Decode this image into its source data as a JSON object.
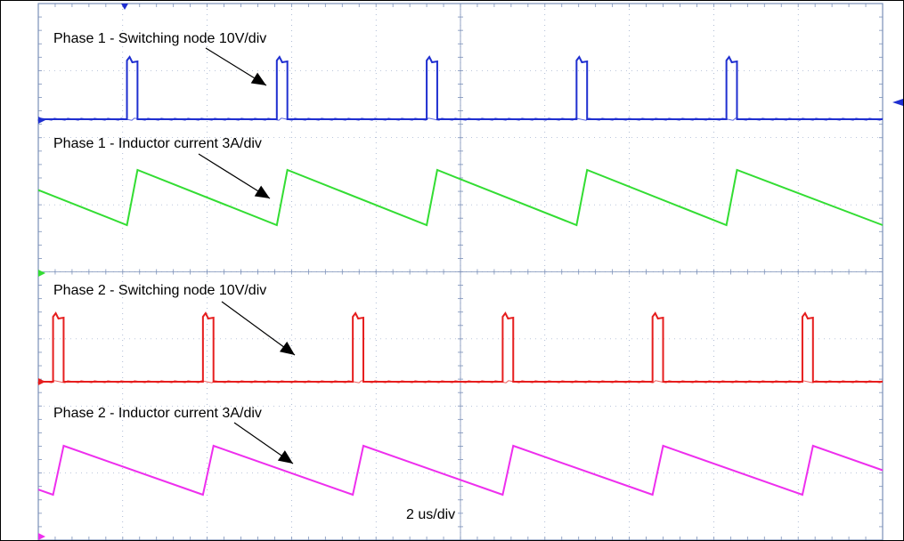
{
  "chart_data": {
    "type": "line",
    "title": "",
    "timebase_label": "2 us/div",
    "x_unit": "us",
    "x_range": [
      0,
      20
    ],
    "grid": true,
    "period_us": 3.55,
    "colors": {
      "phase1_switch": "#1f2fd0",
      "phase1_current": "#33dd33",
      "phase2_switch": "#e61e1e",
      "phase2_current": "#ee2fee",
      "grid": "#7a8fb8",
      "arrow": "#000000"
    },
    "annotations": [
      "Phase 1 - Switching node 10V/div",
      "Phase 1 - Inductor current 3A/div",
      "Phase 2 - Switching node 10V/div",
      "Phase 2 - Inductor current 3A/div"
    ],
    "series": [
      {
        "name": "Phase 1 - Switching node 10V/div",
        "kind": "pulse",
        "pulse_starts_us": [
          2.1,
          5.65,
          9.2,
          12.75,
          16.3
        ],
        "pulse_width_us": 0.25,
        "scale": "10V/div"
      },
      {
        "name": "Phase 1 - Inductor current 3A/div",
        "kind": "sawtooth",
        "ramp_up_starts_us": [
          2.1,
          5.65,
          9.2,
          12.75,
          16.3
        ],
        "ramp_width_us": 0.25,
        "scale": "3A/div"
      },
      {
        "name": "Phase 2 - Switching node 10V/div",
        "kind": "pulse",
        "pulse_starts_us": [
          0.35,
          3.9,
          7.45,
          11.0,
          14.55,
          18.1
        ],
        "pulse_width_us": 0.25,
        "scale": "10V/div"
      },
      {
        "name": "Phase 2 - Inductor current 3A/div",
        "kind": "sawtooth",
        "ramp_up_starts_us": [
          0.35,
          3.9,
          7.45,
          11.0,
          14.55,
          18.1
        ],
        "ramp_width_us": 0.25,
        "scale": "3A/div"
      }
    ]
  }
}
